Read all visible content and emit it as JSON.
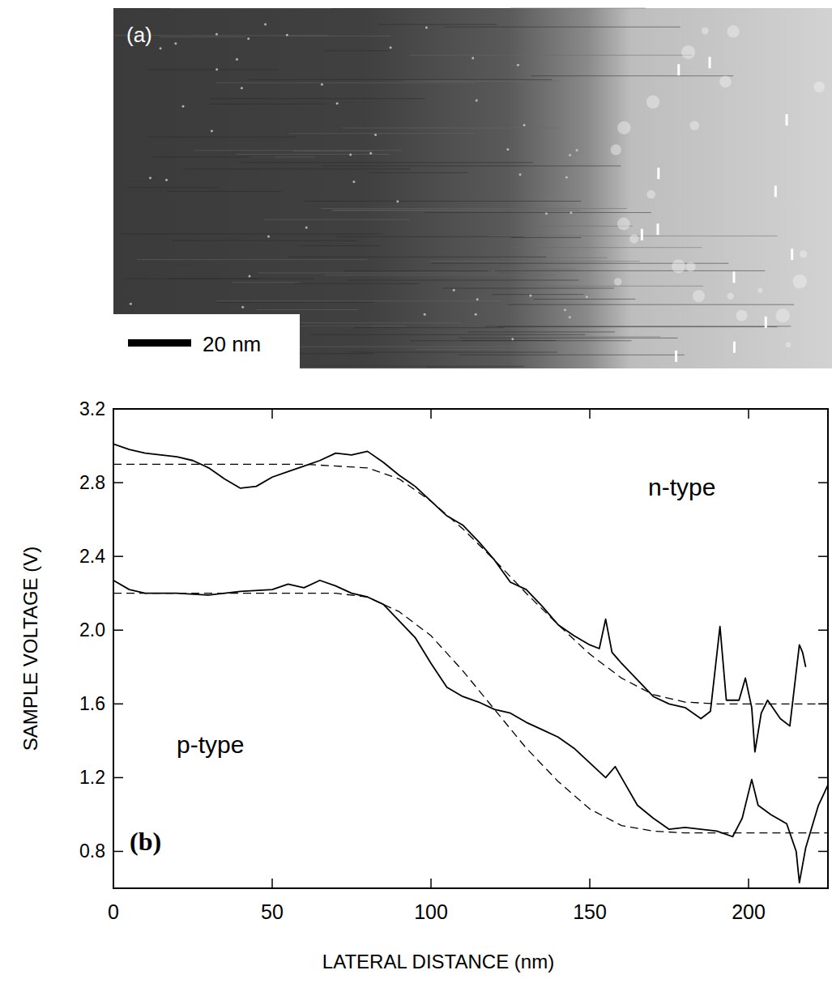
{
  "image_panel": {
    "label": "(a)",
    "scale_bar": "20 nm"
  },
  "chart_data": {
    "type": "line",
    "x_label": "LATERAL DISTANCE (nm)",
    "y_label": "SAMPLE VOLTAGE (V)",
    "annotations": [
      "(b)"
    ],
    "xlim": [
      0,
      225
    ],
    "ylim": [
      0.6,
      3.2
    ],
    "xticks": [
      0,
      50,
      100,
      150,
      200
    ],
    "yticks": [
      0.8,
      1.2,
      1.6,
      {
        "value": 2,
        "label": "2.0"
      },
      2.4,
      2.8,
      3.2
    ],
    "grid": false,
    "series": [
      {
        "name": "n-type",
        "color": "#000000",
        "line_style": "solid",
        "x": [
          0,
          5,
          10,
          15,
          20,
          25,
          30,
          35,
          40,
          45,
          50,
          55,
          60,
          65,
          70,
          75,
          80,
          85,
          90,
          95,
          100,
          105,
          110,
          115,
          120,
          125,
          130,
          135,
          140,
          145,
          150,
          153,
          155,
          157,
          160,
          165,
          170,
          175,
          180,
          185,
          188,
          191,
          193,
          197,
          199,
          201,
          202,
          204,
          206,
          210,
          213,
          216,
          217,
          218
        ],
        "values": [
          3.01,
          2.98,
          2.96,
          2.95,
          2.94,
          2.92,
          2.88,
          2.82,
          2.77,
          2.78,
          2.83,
          2.86,
          2.89,
          2.92,
          2.96,
          2.95,
          2.97,
          2.91,
          2.84,
          2.78,
          2.7,
          2.62,
          2.57,
          2.48,
          2.38,
          2.26,
          2.22,
          2.13,
          2.03,
          1.97,
          1.92,
          1.9,
          2.06,
          1.88,
          1.82,
          1.73,
          1.64,
          1.6,
          1.58,
          1.52,
          1.56,
          2.02,
          1.62,
          1.62,
          1.74,
          1.58,
          1.34,
          1.55,
          1.62,
          1.52,
          1.48,
          1.92,
          1.88,
          1.8
        ]
      },
      {
        "color": "#000000",
        "line_style": "dashed",
        "x": [
          0,
          60,
          80,
          90,
          100,
          110,
          120,
          130,
          140,
          150,
          160,
          170,
          180,
          190,
          225
        ],
        "values": [
          2.9,
          2.9,
          2.88,
          2.82,
          2.7,
          2.55,
          2.38,
          2.2,
          2.03,
          1.87,
          1.74,
          1.65,
          1.61,
          1.6,
          1.6
        ]
      },
      {
        "name": "p-type",
        "color": "#000000",
        "line_style": "solid",
        "x": [
          0,
          5,
          10,
          20,
          30,
          40,
          50,
          55,
          60,
          65,
          70,
          75,
          80,
          85,
          90,
          95,
          100,
          105,
          110,
          115,
          120,
          125,
          130,
          135,
          140,
          145,
          150,
          155,
          158,
          160,
          165,
          170,
          175,
          180,
          185,
          190,
          195,
          198,
          201,
          203,
          207,
          212,
          215,
          216,
          218,
          222,
          225
        ],
        "values": [
          2.27,
          2.22,
          2.2,
          2.2,
          2.19,
          2.21,
          2.22,
          2.25,
          2.23,
          2.27,
          2.24,
          2.2,
          2.18,
          2.14,
          2.05,
          1.96,
          1.82,
          1.69,
          1.64,
          1.61,
          1.57,
          1.55,
          1.5,
          1.46,
          1.42,
          1.36,
          1.28,
          1.2,
          1.26,
          1.2,
          1.05,
          0.98,
          0.92,
          0.93,
          0.92,
          0.91,
          0.88,
          0.98,
          1.19,
          1.05,
          1.0,
          0.95,
          0.8,
          0.63,
          0.82,
          1.05,
          1.16
        ]
      },
      {
        "color": "#000000",
        "line_style": "dashed",
        "x": [
          0,
          70,
          80,
          90,
          100,
          110,
          120,
          130,
          140,
          150,
          160,
          170,
          180,
          225
        ],
        "values": [
          2.2,
          2.2,
          2.18,
          2.1,
          1.97,
          1.78,
          1.57,
          1.36,
          1.18,
          1.03,
          0.94,
          0.91,
          0.9,
          0.9
        ]
      }
    ]
  }
}
